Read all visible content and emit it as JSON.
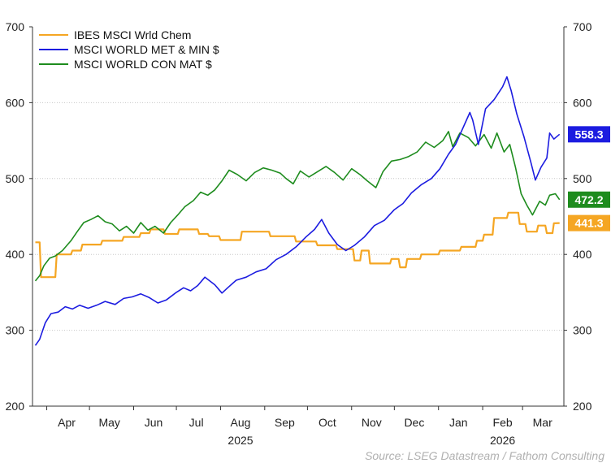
{
  "chart_data": {
    "type": "line",
    "title": "",
    "xlabel": "",
    "ylabel": "",
    "ylim": [
      200,
      700
    ],
    "yticks": [
      200,
      300,
      400,
      500,
      600,
      700
    ],
    "y_axes": "left and right, mirrored",
    "grid": "horizontal dotted",
    "legend_position": "top-left",
    "months": [
      "Apr",
      "May",
      "Jun",
      "Jul",
      "Aug",
      "Sep",
      "Oct",
      "Nov",
      "Dec",
      "Jan",
      "Feb",
      "Mar"
    ],
    "years": [
      {
        "label": "2025",
        "under_month": "Aug"
      },
      {
        "label": "2026",
        "under_month": "Feb"
      }
    ],
    "source": "Source: LSEG Datastream / Fathom Consulting",
    "series": [
      {
        "name": "IBES MSCI Wrld Chem",
        "color": "#f5a623",
        "last_label": "441.3",
        "points": [
          [
            "2025-03-24",
            416
          ],
          [
            "2025-03-27",
            416
          ],
          [
            "2025-03-28",
            370
          ],
          [
            "2025-04-07",
            370
          ],
          [
            "2025-04-08",
            400
          ],
          [
            "2025-04-18",
            400
          ],
          [
            "2025-04-19",
            405
          ],
          [
            "2025-04-25",
            405
          ],
          [
            "2025-04-26",
            413
          ],
          [
            "2025-05-09",
            413
          ],
          [
            "2025-05-10",
            418
          ],
          [
            "2025-05-24",
            418
          ],
          [
            "2025-05-25",
            423
          ],
          [
            "2025-06-05",
            423
          ],
          [
            "2025-06-06",
            428
          ],
          [
            "2025-06-12",
            428
          ],
          [
            "2025-06-13",
            433
          ],
          [
            "2025-06-22",
            433
          ],
          [
            "2025-06-23",
            427
          ],
          [
            "2025-07-02",
            427
          ],
          [
            "2025-07-03",
            433
          ],
          [
            "2025-07-16",
            433
          ],
          [
            "2025-07-17",
            427
          ],
          [
            "2025-07-23",
            427
          ],
          [
            "2025-07-24",
            424
          ],
          [
            "2025-07-31",
            424
          ],
          [
            "2025-08-01",
            419
          ],
          [
            "2025-08-15",
            419
          ],
          [
            "2025-08-16",
            430
          ],
          [
            "2025-09-04",
            430
          ],
          [
            "2025-09-05",
            424
          ],
          [
            "2025-09-22",
            424
          ],
          [
            "2025-09-23",
            417
          ],
          [
            "2025-10-07",
            417
          ],
          [
            "2025-10-08",
            412
          ],
          [
            "2025-10-21",
            412
          ],
          [
            "2025-10-22",
            407
          ],
          [
            "2025-11-02",
            407
          ],
          [
            "2025-11-03",
            392
          ],
          [
            "2025-11-07",
            392
          ],
          [
            "2025-11-08",
            405
          ],
          [
            "2025-11-13",
            405
          ],
          [
            "2025-11-14",
            388
          ],
          [
            "2025-11-28",
            388
          ],
          [
            "2025-11-29",
            394
          ],
          [
            "2025-12-04",
            394
          ],
          [
            "2025-12-05",
            383
          ],
          [
            "2025-12-09",
            383
          ],
          [
            "2025-12-10",
            394
          ],
          [
            "2025-12-19",
            394
          ],
          [
            "2025-12-20",
            400
          ],
          [
            "2026-01-01",
            400
          ],
          [
            "2026-01-02",
            405
          ],
          [
            "2026-01-16",
            405
          ],
          [
            "2026-01-17",
            410
          ],
          [
            "2026-01-27",
            410
          ],
          [
            "2026-01-28",
            418
          ],
          [
            "2026-02-01",
            418
          ],
          [
            "2026-02-02",
            426
          ],
          [
            "2026-02-08",
            426
          ],
          [
            "2026-02-09",
            448
          ],
          [
            "2026-02-18",
            448
          ],
          [
            "2026-02-19",
            455
          ],
          [
            "2026-02-26",
            455
          ],
          [
            "2026-02-27",
            440
          ],
          [
            "2026-03-03",
            440
          ],
          [
            "2026-03-04",
            430
          ],
          [
            "2026-03-11",
            430
          ],
          [
            "2026-03-12",
            438
          ],
          [
            "2026-03-17",
            438
          ],
          [
            "2026-03-18",
            428
          ],
          [
            "2026-03-22",
            428
          ],
          [
            "2026-03-23",
            441
          ],
          [
            "2026-03-27",
            441.3
          ]
        ]
      },
      {
        "name": "MSCI WORLD MET & MIN $",
        "color": "#1c1ce0",
        "last_label": "558.3",
        "points": [
          [
            "2025-03-24",
            280
          ],
          [
            "2025-03-27",
            288
          ],
          [
            "2025-03-31",
            310
          ],
          [
            "2025-04-04",
            322
          ],
          [
            "2025-04-09",
            324
          ],
          [
            "2025-04-14",
            331
          ],
          [
            "2025-04-19",
            328
          ],
          [
            "2025-04-24",
            333
          ],
          [
            "2025-04-30",
            329
          ],
          [
            "2025-05-06",
            333
          ],
          [
            "2025-05-12",
            338
          ],
          [
            "2025-05-19",
            334
          ],
          [
            "2025-05-25",
            342
          ],
          [
            "2025-05-31",
            344
          ],
          [
            "2025-06-06",
            348
          ],
          [
            "2025-06-12",
            343
          ],
          [
            "2025-06-18",
            336
          ],
          [
            "2025-06-24",
            340
          ],
          [
            "2025-07-01",
            350
          ],
          [
            "2025-07-06",
            356
          ],
          [
            "2025-07-11",
            352
          ],
          [
            "2025-07-16",
            359
          ],
          [
            "2025-07-21",
            370
          ],
          [
            "2025-07-28",
            360
          ],
          [
            "2025-08-02",
            349
          ],
          [
            "2025-08-06",
            356
          ],
          [
            "2025-08-12",
            366
          ],
          [
            "2025-08-19",
            370
          ],
          [
            "2025-08-26",
            377
          ],
          [
            "2025-09-02",
            381
          ],
          [
            "2025-09-09",
            393
          ],
          [
            "2025-09-16",
            400
          ],
          [
            "2025-09-23",
            410
          ],
          [
            "2025-09-30",
            423
          ],
          [
            "2025-10-06",
            433
          ],
          [
            "2025-10-11",
            446
          ],
          [
            "2025-10-16",
            428
          ],
          [
            "2025-10-22",
            413
          ],
          [
            "2025-10-28",
            405
          ],
          [
            "2025-11-03",
            412
          ],
          [
            "2025-11-10",
            423
          ],
          [
            "2025-11-17",
            438
          ],
          [
            "2025-11-24",
            445
          ],
          [
            "2025-12-01",
            459
          ],
          [
            "2025-12-07",
            467
          ],
          [
            "2025-12-13",
            481
          ],
          [
            "2025-12-20",
            492
          ],
          [
            "2025-12-27",
            500
          ],
          [
            "2026-01-02",
            513
          ],
          [
            "2026-01-08",
            532
          ],
          [
            "2026-01-13",
            545
          ],
          [
            "2026-01-18",
            566
          ],
          [
            "2026-01-23",
            587
          ],
          [
            "2026-01-25",
            577
          ],
          [
            "2026-01-29",
            545
          ],
          [
            "2026-02-03",
            592
          ],
          [
            "2026-02-09",
            604
          ],
          [
            "2026-02-15",
            621
          ],
          [
            "2026-02-18",
            634
          ],
          [
            "2026-02-21",
            616
          ],
          [
            "2026-02-25",
            585
          ],
          [
            "2026-03-02",
            555
          ],
          [
            "2026-03-07",
            520
          ],
          [
            "2026-03-10",
            498
          ],
          [
            "2026-03-14",
            515
          ],
          [
            "2026-03-18",
            527
          ],
          [
            "2026-03-20",
            560
          ],
          [
            "2026-03-23",
            552
          ],
          [
            "2026-03-27",
            558.3
          ]
        ]
      },
      {
        "name": "MSCI WORLD CON MAT $",
        "color": "#1e8c1e",
        "last_label": "472.2",
        "points": [
          [
            "2025-03-24",
            365
          ],
          [
            "2025-03-27",
            372
          ],
          [
            "2025-03-30",
            385
          ],
          [
            "2025-04-03",
            395
          ],
          [
            "2025-04-07",
            398
          ],
          [
            "2025-04-12",
            405
          ],
          [
            "2025-04-18",
            418
          ],
          [
            "2025-04-22",
            429
          ],
          [
            "2025-04-27",
            442
          ],
          [
            "2025-05-02",
            446
          ],
          [
            "2025-05-07",
            451
          ],
          [
            "2025-05-12",
            443
          ],
          [
            "2025-05-17",
            440
          ],
          [
            "2025-05-22",
            431
          ],
          [
            "2025-05-27",
            437
          ],
          [
            "2025-06-01",
            428
          ],
          [
            "2025-06-06",
            442
          ],
          [
            "2025-06-11",
            432
          ],
          [
            "2025-06-16",
            437
          ],
          [
            "2025-06-22",
            428
          ],
          [
            "2025-06-27",
            442
          ],
          [
            "2025-07-02",
            452
          ],
          [
            "2025-07-07",
            463
          ],
          [
            "2025-07-13",
            471
          ],
          [
            "2025-07-18",
            482
          ],
          [
            "2025-07-23",
            478
          ],
          [
            "2025-07-28",
            485
          ],
          [
            "2025-08-02",
            497
          ],
          [
            "2025-08-07",
            511
          ],
          [
            "2025-08-13",
            505
          ],
          [
            "2025-08-19",
            497
          ],
          [
            "2025-08-25",
            508
          ],
          [
            "2025-08-31",
            514
          ],
          [
            "2025-09-06",
            511
          ],
          [
            "2025-09-12",
            507
          ],
          [
            "2025-09-16",
            500
          ],
          [
            "2025-09-21",
            493
          ],
          [
            "2025-09-26",
            510
          ],
          [
            "2025-10-02",
            502
          ],
          [
            "2025-10-08",
            509
          ],
          [
            "2025-10-14",
            516
          ],
          [
            "2025-10-20",
            508
          ],
          [
            "2025-10-26",
            498
          ],
          [
            "2025-11-01",
            513
          ],
          [
            "2025-11-07",
            505
          ],
          [
            "2025-11-12",
            497
          ],
          [
            "2025-11-18",
            488
          ],
          [
            "2025-11-23",
            509
          ],
          [
            "2025-11-29",
            523
          ],
          [
            "2025-12-05",
            525
          ],
          [
            "2025-12-11",
            529
          ],
          [
            "2025-12-17",
            535
          ],
          [
            "2025-12-23",
            548
          ],
          [
            "2025-12-29",
            541
          ],
          [
            "2026-01-04",
            550
          ],
          [
            "2026-01-08",
            562
          ],
          [
            "2026-01-11",
            542
          ],
          [
            "2026-01-16",
            560
          ],
          [
            "2026-01-22",
            554
          ],
          [
            "2026-01-27",
            543
          ],
          [
            "2026-02-02",
            558
          ],
          [
            "2026-02-07",
            540
          ],
          [
            "2026-02-11",
            560
          ],
          [
            "2026-02-16",
            535
          ],
          [
            "2026-02-20",
            545
          ],
          [
            "2026-02-24",
            515
          ],
          [
            "2026-02-28",
            480
          ],
          [
            "2026-03-04",
            465
          ],
          [
            "2026-03-08",
            452
          ],
          [
            "2026-03-13",
            470
          ],
          [
            "2026-03-17",
            465
          ],
          [
            "2026-03-20",
            478
          ],
          [
            "2026-03-24",
            480
          ],
          [
            "2026-03-27",
            472.2
          ]
        ]
      }
    ]
  }
}
